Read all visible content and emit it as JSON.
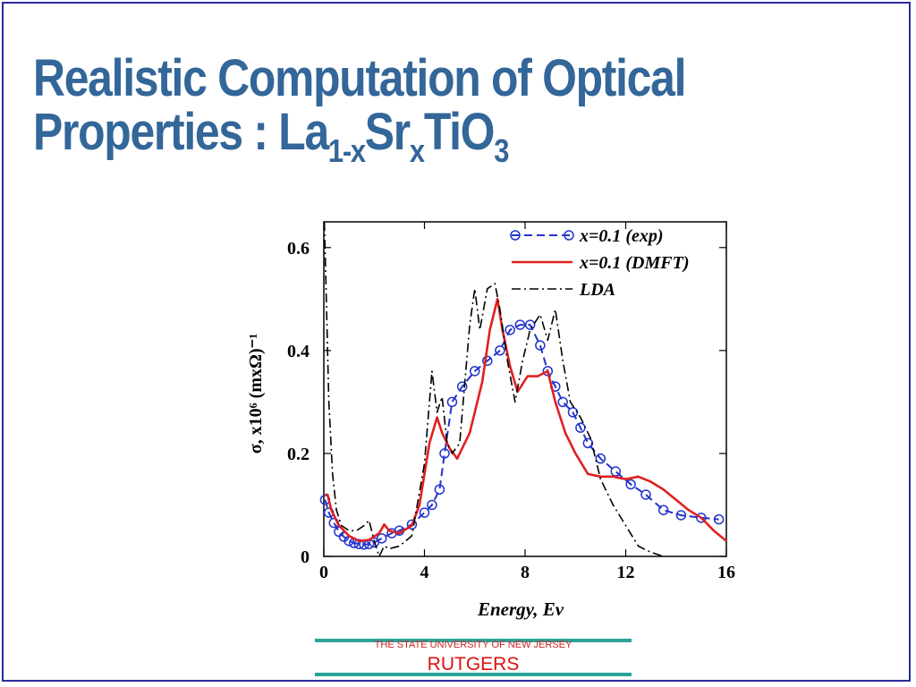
{
  "slide": {
    "title_line1": "Realistic Computation of Optical",
    "title_line2_prefix": "Properties : La",
    "title_sub1": "1-x",
    "title_mid": "Sr",
    "title_sub2": "x",
    "title_mid2": "TiO",
    "title_sub3": "3"
  },
  "footer": {
    "university": "THE STATE UNIVERSITY OF NEW JERSEY",
    "name": "RUTGERS"
  },
  "colors": {
    "title": "#336699",
    "exp": "#2233cc",
    "dmft": "#e02020",
    "lda": "#000000",
    "footer_band": "#2aa39a",
    "footer_text": "#dd1111"
  },
  "chart_data": {
    "type": "line",
    "xlabel": "Energy, Ev",
    "ylabel": "σ,  x10⁶ (mxΩ)⁻¹",
    "xlim": [
      0,
      16
    ],
    "ylim": [
      0,
      0.65
    ],
    "xticks": [
      "0",
      "4",
      "8",
      "12",
      "16"
    ],
    "yticks": [
      "0",
      "0.2",
      "0.4",
      "0.6"
    ],
    "legend_position": "top-right",
    "series": [
      {
        "name": "x=0.1 (exp)",
        "style": "dashed-circles",
        "x": [
          0.05,
          0.2,
          0.4,
          0.6,
          0.8,
          1.0,
          1.2,
          1.4,
          1.6,
          1.8,
          2.0,
          2.3,
          2.7,
          3.0,
          3.5,
          4.0,
          4.3,
          4.6,
          4.8,
          5.1,
          5.5,
          6.0,
          6.5,
          7.0,
          7.4,
          7.8,
          8.2,
          8.6,
          8.9,
          9.2,
          9.5,
          9.9,
          10.2,
          10.5,
          11.0,
          11.6,
          12.2,
          12.8,
          13.5,
          14.2,
          15.0,
          15.7
        ],
        "y": [
          0.11,
          0.085,
          0.065,
          0.048,
          0.038,
          0.03,
          0.026,
          0.024,
          0.023,
          0.024,
          0.027,
          0.035,
          0.045,
          0.05,
          0.062,
          0.085,
          0.1,
          0.13,
          0.2,
          0.3,
          0.33,
          0.36,
          0.38,
          0.4,
          0.44,
          0.45,
          0.45,
          0.41,
          0.36,
          0.33,
          0.3,
          0.28,
          0.25,
          0.22,
          0.19,
          0.165,
          0.14,
          0.12,
          0.09,
          0.08,
          0.075,
          0.072
        ]
      },
      {
        "name": "x=0.1 (DMFT)",
        "style": "solid",
        "x": [
          0.05,
          0.15,
          0.3,
          0.6,
          1.0,
          1.4,
          1.8,
          2.2,
          2.4,
          2.6,
          3.0,
          3.5,
          3.8,
          4.2,
          4.5,
          4.7,
          5.0,
          5.3,
          5.8,
          6.3,
          6.6,
          6.9,
          7.1,
          7.4,
          7.7,
          8.1,
          8.5,
          8.9,
          9.2,
          9.6,
          10.0,
          10.5,
          11.0,
          11.5,
          12.0,
          12.5,
          13.0,
          13.5,
          14.0,
          14.5,
          15.0,
          15.5,
          16.0
        ],
        "y": [
          0.12,
          0.12,
          0.09,
          0.06,
          0.04,
          0.03,
          0.032,
          0.045,
          0.062,
          0.05,
          0.045,
          0.06,
          0.1,
          0.22,
          0.27,
          0.24,
          0.21,
          0.19,
          0.24,
          0.34,
          0.44,
          0.5,
          0.44,
          0.37,
          0.32,
          0.35,
          0.35,
          0.36,
          0.3,
          0.24,
          0.2,
          0.16,
          0.155,
          0.155,
          0.15,
          0.155,
          0.145,
          0.13,
          0.11,
          0.09,
          0.075,
          0.05,
          0.03
        ]
      },
      {
        "name": "LDA",
        "style": "dash-dot",
        "x": [
          0.02,
          0.1,
          0.2,
          0.35,
          0.5,
          0.7,
          1.0,
          1.3,
          1.6,
          1.8,
          2.0,
          2.2,
          2.4,
          2.6,
          3.0,
          3.5,
          4.0,
          4.3,
          4.5,
          4.7,
          4.9,
          5.1,
          5.4,
          5.8,
          6.0,
          6.2,
          6.5,
          6.8,
          7.0,
          7.3,
          7.6,
          7.9,
          8.2,
          8.6,
          8.9,
          9.2,
          9.5,
          9.8,
          10.2,
          10.6,
          11.0,
          11.5,
          12.0,
          12.5,
          13.0,
          13.5
        ],
        "y": [
          0.65,
          0.5,
          0.3,
          0.16,
          0.09,
          0.06,
          0.05,
          0.05,
          0.06,
          0.07,
          0.03,
          0.0,
          0.02,
          0.015,
          0.02,
          0.04,
          0.18,
          0.36,
          0.28,
          0.31,
          0.22,
          0.2,
          0.22,
          0.45,
          0.52,
          0.44,
          0.52,
          0.53,
          0.48,
          0.38,
          0.3,
          0.38,
          0.44,
          0.47,
          0.42,
          0.48,
          0.38,
          0.3,
          0.27,
          0.23,
          0.15,
          0.1,
          0.06,
          0.02,
          0.008,
          0.0
        ]
      }
    ]
  }
}
